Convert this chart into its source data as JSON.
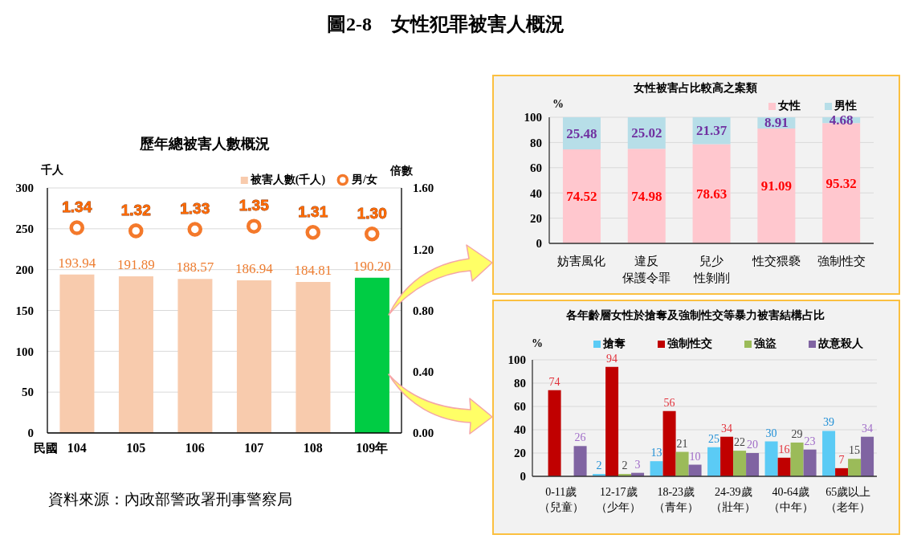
{
  "chart_data": [
    {
      "type": "bar",
      "title": "歷年總被害人數概況",
      "xlabel": "民國",
      "ylabel": "千人",
      "y2label": "倍數",
      "annotations": [
        "圖2-8　女性犯罪被害人概況",
        "資料來源：內政部警政署刑事警察局"
      ],
      "categories": [
        "104",
        "105",
        "106",
        "107",
        "108",
        "109年"
      ],
      "series": [
        {
          "name": "被害人數(千人)",
          "colors": [
            "#f8cbad",
            "#f8cbad",
            "#f8cbad",
            "#f8cbad",
            "#f8cbad",
            "#00cc44"
          ],
          "values": [
            193.94,
            191.89,
            188.57,
            186.94,
            184.81,
            190.2
          ],
          "value_labels": [
            "193.94",
            "191.89",
            "188.57",
            "186.94",
            "184.81",
            "190.20"
          ]
        },
        {
          "name": "男/女",
          "type": "scatter",
          "axis": "y2",
          "color": "#f4792b",
          "x": [
            "104",
            "105",
            "106",
            "107",
            "108",
            "109年"
          ],
          "values": [
            1.34,
            1.32,
            1.33,
            1.35,
            1.31,
            1.3
          ],
          "value_labels": [
            "1.34",
            "1.32",
            "1.33",
            "1.35",
            "1.31",
            "1.30"
          ]
        }
      ],
      "ylim": [
        0,
        300
      ],
      "yticks": [
        0,
        50,
        100,
        150,
        200,
        250,
        300
      ],
      "y2lim": [
        0,
        1.6
      ],
      "y2ticks": [
        {
          "value": 0,
          "label": "0.00"
        },
        {
          "value": 0.4,
          "label": "0.40"
        },
        {
          "value": 0.8,
          "label": "0.80"
        },
        {
          "value": 1.2,
          "label": "1.20"
        },
        {
          "value": 1.6,
          "label": "1.60"
        }
      ],
      "grid": "y",
      "legend": "top right",
      "marker": "circle"
    },
    {
      "type": "bar",
      "title": "女性被害占比較高之案類",
      "ylabel": "%",
      "categories": [
        "妨害風化",
        "違反保護令罪",
        "兒少性剝削",
        "性交猥褻",
        "強制性交"
      ],
      "series": [
        {
          "name": "女性",
          "color": "#ffc7ce",
          "values": [
            74.52,
            74.98,
            78.63,
            91.09,
            95.32
          ]
        },
        {
          "name": "男性",
          "color": "#b7dee8",
          "values": [
            25.48,
            25.02,
            21.37,
            8.91,
            4.68
          ]
        }
      ],
      "stacked": true,
      "data_labels": true,
      "ylim": [
        0,
        100
      ],
      "yticks": [
        0,
        20,
        40,
        60,
        80,
        100
      ],
      "grid": "y",
      "legend": "top right"
    },
    {
      "type": "bar",
      "title": "各年齡層女性於搶奪及強制性交等暴力被害結構占比",
      "ylabel": "%",
      "categories": [
        "0-11歲（兒童）",
        "12-17歲（少年）",
        "18-23歲（青年）",
        "24-39歲（壯年）",
        "40-64歲（中年）",
        "65歲以上（老年）"
      ],
      "series": [
        {
          "name": "搶奪",
          "color": "#5bcbf5",
          "values": [
            0,
            2,
            13,
            25,
            30,
            39
          ],
          "value_labels": [
            null,
            "2",
            "13",
            "25",
            "30",
            "39"
          ]
        },
        {
          "name": "強制性交",
          "color": "#c00000",
          "values": [
            74,
            94,
            56,
            34,
            16,
            7
          ],
          "value_labels": [
            "74",
            "94",
            "56",
            "34",
            "16",
            "7"
          ]
        },
        {
          "name": "強盜",
          "color": "#9bbb59",
          "values": [
            0,
            2,
            21,
            22,
            29,
            15
          ],
          "value_labels": [
            null,
            "2",
            "21",
            "22",
            "29",
            "15"
          ]
        },
        {
          "name": "故意殺人",
          "color": "#8064a2",
          "values": [
            26,
            3,
            10,
            20,
            23,
            34
          ],
          "value_labels": [
            "26",
            "3",
            "10",
            "20",
            "23",
            "34"
          ]
        }
      ],
      "ylim": [
        0,
        100
      ],
      "yticks": [
        0,
        20,
        40,
        60,
        80,
        100
      ],
      "grid": "y",
      "legend": "top"
    }
  ]
}
